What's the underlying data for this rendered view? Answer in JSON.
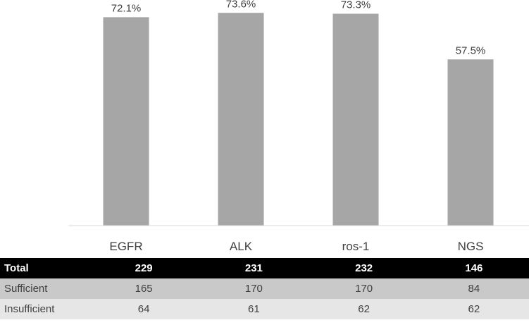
{
  "chart_data": {
    "type": "bar",
    "categories": [
      "EGFR",
      "ALK",
      "ros-1",
      "NGS"
    ],
    "values": [
      72.1,
      73.6,
      73.3,
      57.5
    ],
    "value_labels": [
      "72.1%",
      "73.6%",
      "73.3%",
      "57.5%"
    ],
    "title": "",
    "xlabel": "",
    "ylabel": "",
    "ylim": [
      0,
      100
    ],
    "grid": false,
    "bar_color": "#a6a6a6"
  },
  "table": {
    "rows": [
      {
        "label": "Total",
        "values": [
          "229",
          "231",
          "232",
          "146"
        ]
      },
      {
        "label": "Sufficient",
        "values": [
          "165",
          "170",
          "170",
          "84"
        ]
      },
      {
        "label": "Insufficient",
        "values": [
          "64",
          "61",
          "62",
          "62"
        ]
      }
    ]
  }
}
